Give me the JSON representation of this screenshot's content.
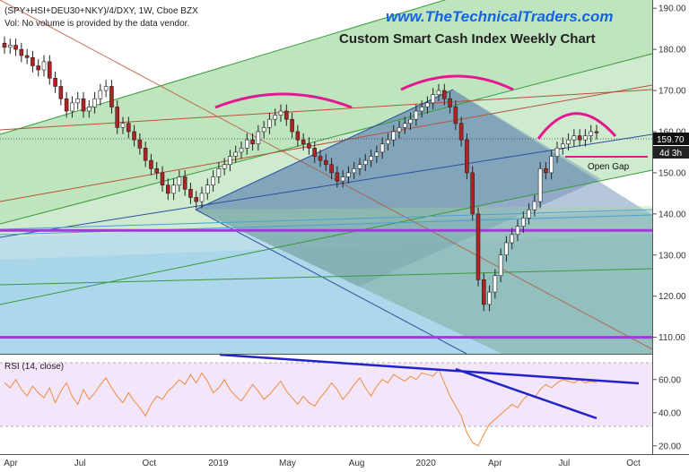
{
  "header": {
    "symbol_line": "(SPY+HSI+DEU30+NKY)/4/DXY, 1W, Cboe BZX",
    "vol_note": "Vol: No volume is provided by the data vendor.",
    "watermark": "www.TheTechnicalTraders.com",
    "title": "Custom Smart Cash Index Weekly Chart"
  },
  "annotations": {
    "open_gap": "Open Gap",
    "price_tag": "159.70",
    "time_tag": "4d 3h"
  },
  "colors": {
    "watermark": "#1565e0",
    "up_candle": "#ffffff",
    "down_candle": "#b22222",
    "magenta": "#e3178f",
    "purple_line": "#a13bd8",
    "rsi_line": "#ef8b3f",
    "trend_blue": "#2222cc",
    "rsi_band": "#f3e6fb"
  },
  "chart_data": [
    {
      "type": "candlestick",
      "title": "Custom Smart Cash Index Weekly Chart",
      "y_axis_ticks": [
        110,
        120,
        130,
        140,
        150,
        160,
        170,
        180,
        190
      ],
      "ylim": [
        106,
        192
      ],
      "x_axis_ticks": [
        "Apr",
        "Jul",
        "Oct",
        "2019",
        "May",
        "Aug",
        "2020",
        "Apr",
        "Jul",
        "Oct"
      ],
      "last_price": 159.7,
      "horizontal_levels": [
        136,
        110
      ],
      "open_gap_level": 155,
      "closes": [
        180.5,
        181,
        180,
        178.5,
        178,
        176,
        175,
        177,
        173,
        171,
        168,
        165,
        167,
        168,
        165,
        166,
        168,
        170,
        171,
        166,
        161,
        162,
        160,
        158,
        156,
        153,
        151,
        150,
        147,
        145,
        147,
        149,
        146,
        144,
        143,
        145,
        147,
        149,
        151,
        152,
        154,
        155,
        156,
        158,
        157,
        160,
        161,
        163,
        164,
        165,
        163,
        160,
        158,
        157,
        156,
        154,
        153,
        152,
        150,
        148,
        149,
        150,
        151,
        152,
        153,
        154,
        155,
        157,
        158,
        160,
        161,
        162,
        163,
        165,
        166,
        167,
        169,
        170,
        168,
        166,
        162,
        158,
        150,
        140,
        124,
        118,
        121,
        125,
        130,
        133,
        135,
        137,
        139,
        141,
        143,
        151,
        150,
        154,
        156,
        157,
        158,
        159,
        158,
        159,
        160,
        159.7
      ],
      "arcs": [
        "2019 rounded top",
        "2020 rounded top",
        "2020 right-shoulder arc"
      ]
    },
    {
      "type": "line",
      "title": "RSI (14, close)",
      "y_axis_ticks": [
        20,
        40,
        60
      ],
      "ylim": [
        15,
        75
      ],
      "bands": [
        30,
        70
      ],
      "values": [
        58,
        55,
        60,
        54,
        50,
        56,
        52,
        49,
        55,
        46,
        53,
        58,
        50,
        45,
        54,
        48,
        52,
        57,
        61,
        55,
        50,
        46,
        52,
        47,
        43,
        38,
        45,
        50,
        48,
        53,
        56,
        60,
        57,
        63,
        58,
        64,
        59,
        52,
        55,
        60,
        54,
        50,
        47,
        52,
        57,
        53,
        48,
        51,
        55,
        59,
        53,
        49,
        45,
        50,
        46,
        44,
        49,
        53,
        58,
        54,
        48,
        52,
        57,
        61,
        55,
        50,
        56,
        60,
        58,
        63,
        61,
        59,
        62,
        60,
        64,
        63,
        62,
        66,
        58,
        50,
        44,
        38,
        28,
        22,
        20,
        27,
        33,
        36,
        39,
        42,
        45,
        43,
        48,
        51,
        49,
        54,
        57,
        55,
        58,
        60,
        59,
        58,
        60,
        58,
        59,
        58
      ],
      "trendlines": [
        "upper RSI resistance",
        "lower RSI resistance"
      ]
    }
  ]
}
